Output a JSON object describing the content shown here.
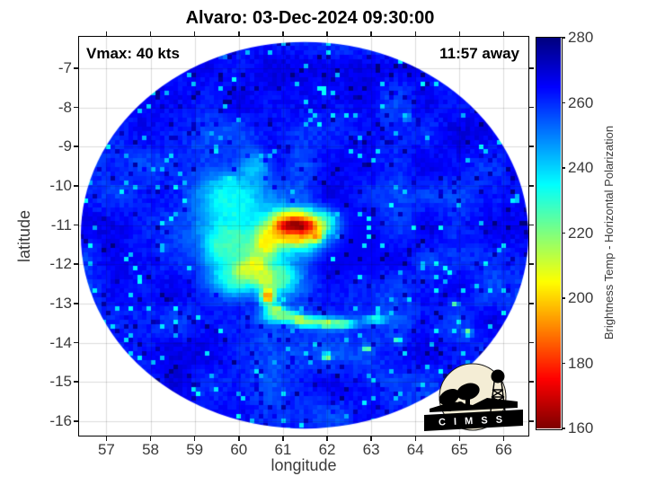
{
  "figure": {
    "title": "Alvaro: 03-Dec-2024 09:30:00"
  },
  "annotations": {
    "vmax": "Vmax: 40 kts",
    "away": "11:57 away"
  },
  "axes": {
    "xlabel": "longitude",
    "ylabel": "latitude",
    "xticks": [
      57,
      58,
      59,
      60,
      61,
      62,
      63,
      64,
      65,
      66
    ],
    "yticks": [
      -7,
      -8,
      -9,
      -10,
      -11,
      -12,
      -13,
      -14,
      -15,
      -16
    ],
    "xlim": [
      56.38,
      66.56
    ],
    "ylim": [
      -16.37,
      -6.2
    ]
  },
  "colorbar": {
    "label": "Brightness Temp - Horizontal Polarization",
    "ticks": [
      280,
      260,
      240,
      220,
      200,
      180,
      160
    ],
    "range": [
      160,
      280
    ],
    "colormap": "jet-reversed"
  },
  "logo": {
    "text": "C I M S S"
  },
  "chart_data": {
    "type": "heatmap",
    "title": "Alvaro: 03-Dec-2024 09:30:00",
    "storm_name": "Alvaro",
    "datetime": "03-Dec-2024 09:30:00",
    "vmax_kts": 40,
    "time_offset": "11:57 away",
    "xlabel": "longitude",
    "ylabel": "latitude",
    "xlim": [
      56.38,
      66.56
    ],
    "ylim": [
      -16.37,
      -6.2
    ],
    "value_label": "Brightness Temp - Horizontal Polarization",
    "value_range_K": [
      160,
      280
    ],
    "background_value_K": 262,
    "swath": {
      "center_lon": 61.49,
      "center_lat": -11.26,
      "radius_lon_deg": 5.07,
      "radius_lat_deg": 4.93
    },
    "eye": {
      "lon": 61.3,
      "lat": -11.0,
      "min_brightness_temp_K": 163
    },
    "features": [
      [
        59.85,
        -10.35,
        0.9,
        0.85,
        235
      ],
      [
        59.8,
        -11.5,
        0.85,
        0.95,
        228
      ],
      [
        59.95,
        -12.35,
        0.7,
        0.6,
        231
      ],
      [
        60.35,
        -9.55,
        0.45,
        0.55,
        243
      ],
      [
        62.6,
        -11.4,
        0.85,
        0.95,
        267
      ],
      [
        61.95,
        -10.9,
        0.4,
        0.35,
        243
      ],
      [
        61.2,
        -10.75,
        0.55,
        0.22,
        222
      ],
      [
        60.9,
        -12.35,
        0.55,
        0.6,
        228
      ],
      [
        60.1,
        -12.15,
        0.3,
        0.3,
        212
      ],
      [
        60.62,
        -11.45,
        0.42,
        0.5,
        207
      ],
      [
        60.4,
        -12.05,
        0.34,
        0.42,
        206
      ],
      [
        60.58,
        -12.35,
        0.3,
        0.3,
        211
      ],
      [
        60.66,
        -12.82,
        0.2,
        0.26,
        193
      ],
      [
        60.84,
        -13.18,
        0.26,
        0.2,
        213
      ],
      [
        61.28,
        -11.15,
        0.85,
        0.6,
        203
      ],
      [
        61.28,
        -11.08,
        0.58,
        0.36,
        186
      ],
      [
        61.3,
        -11.02,
        0.46,
        0.21,
        164
      ],
      [
        61.2,
        -11.32,
        0.22,
        0.13,
        197
      ],
      [
        61.75,
        -11.28,
        0.13,
        0.16,
        190
      ],
      [
        61.0,
        -13.32,
        0.5,
        0.2,
        221
      ],
      [
        61.6,
        -13.47,
        0.55,
        0.18,
        219
      ],
      [
        62.3,
        -13.52,
        0.5,
        0.16,
        224
      ],
      [
        61.35,
        -13.4,
        0.13,
        0.09,
        206
      ],
      [
        62.0,
        -13.52,
        0.13,
        0.09,
        208
      ],
      [
        63.1,
        -13.4,
        0.35,
        0.14,
        234
      ],
      [
        62.0,
        -14.35,
        0.13,
        0.1,
        213
      ],
      [
        62.9,
        -14.15,
        0.11,
        0.09,
        219
      ],
      [
        63.6,
        -13.95,
        0.11,
        0.09,
        226
      ],
      [
        65.2,
        -13.75,
        0.1,
        0.08,
        206
      ],
      [
        64.9,
        -13.0,
        0.1,
        0.08,
        228
      ],
      [
        63.8,
        -8.25,
        0.09,
        0.07,
        216
      ],
      [
        59.65,
        -6.75,
        0.09,
        0.07,
        239
      ],
      [
        59.8,
        -9.85,
        0.16,
        0.09,
        231
      ]
    ]
  }
}
